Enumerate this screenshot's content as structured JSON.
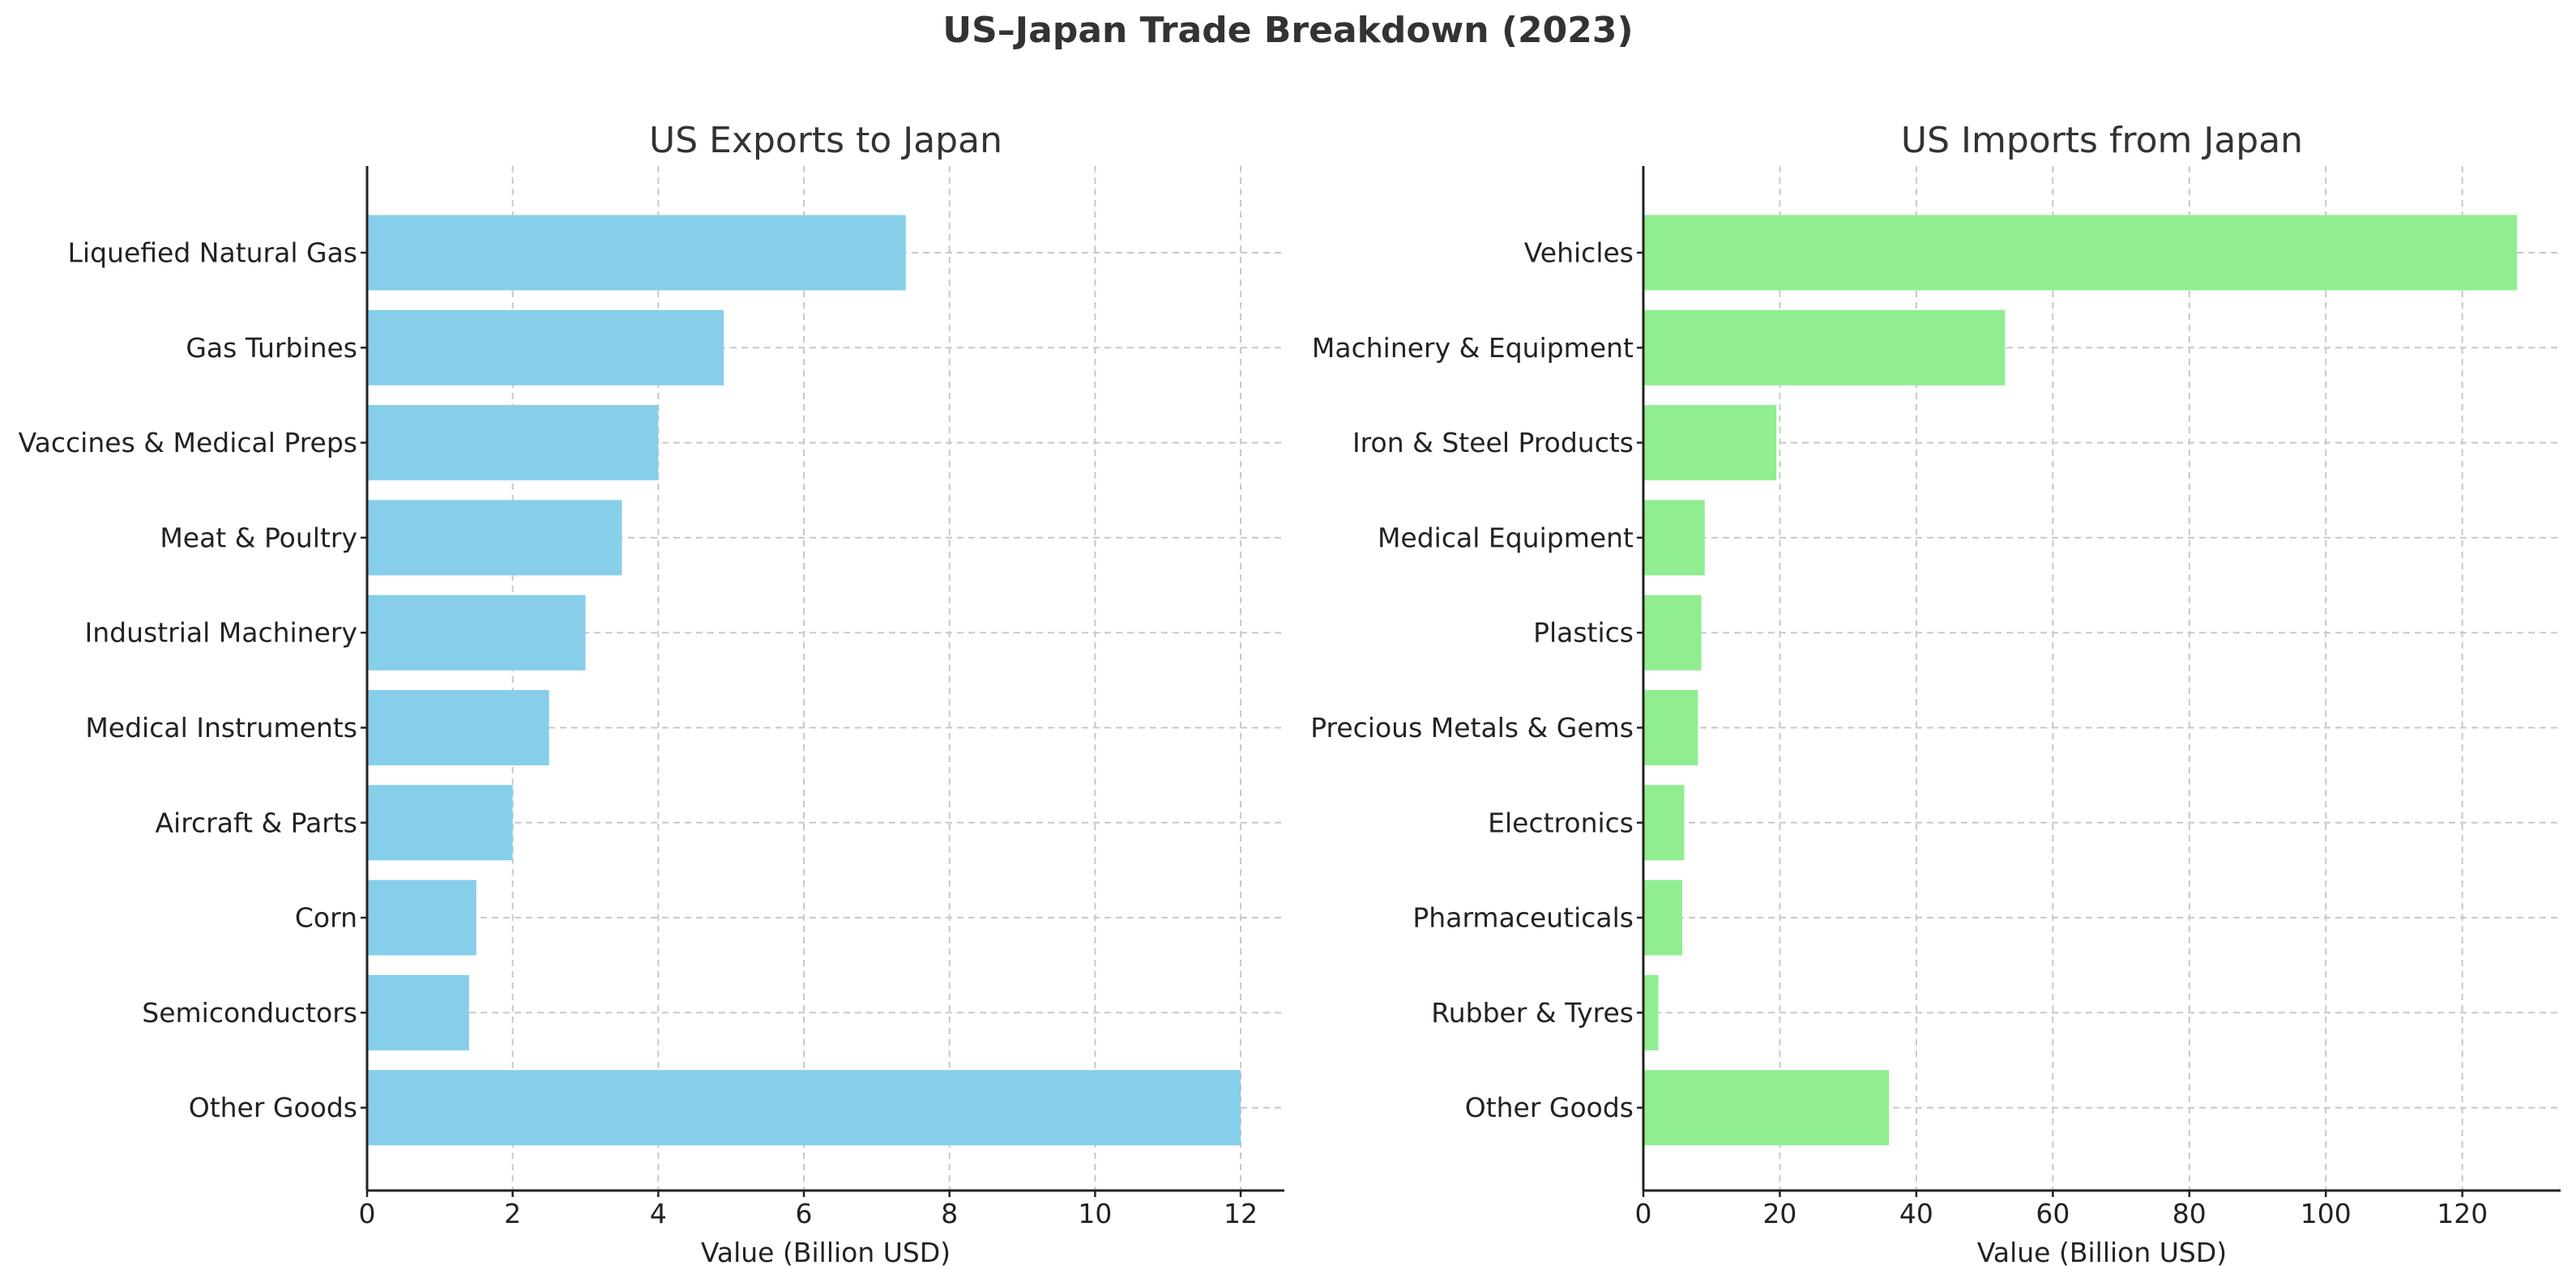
{
  "figure_title": "US–Japan Trade Breakdown (2023)",
  "chart_data": [
    {
      "type": "bar",
      "orientation": "horizontal",
      "title": "US Exports to Japan",
      "xlabel": "Value (Billion USD)",
      "ylabel": "",
      "categories": [
        "Liquefied Natural Gas",
        "Gas Turbines",
        "Vaccines & Medical Preps",
        "Meat & Poultry",
        "Industrial Machinery",
        "Medical Instruments",
        "Aircraft & Parts",
        "Corn",
        "Semiconductors",
        "Other Goods"
      ],
      "values": [
        7.4,
        4.9,
        4.0,
        3.5,
        3.0,
        2.5,
        2.0,
        1.5,
        1.4,
        12.0
      ],
      "xlim": [
        0,
        12.6
      ],
      "xticks": [
        0,
        2,
        4,
        6,
        8,
        10,
        12
      ],
      "color": "#87ceeb",
      "grid": true
    },
    {
      "type": "bar",
      "orientation": "horizontal",
      "title": "US Imports from Japan",
      "xlabel": "Value (Billion USD)",
      "ylabel": "",
      "categories": [
        "Vehicles",
        "Machinery & Equipment",
        "Iron & Steel Products",
        "Medical Equipment",
        "Plastics",
        "Precious Metals & Gems",
        "Electronics",
        "Pharmaceuticals",
        "Rubber & Tyres",
        "Other Goods"
      ],
      "values": [
        128,
        53,
        19.5,
        9,
        8.5,
        8,
        6,
        5.7,
        2.2,
        36
      ],
      "xlim": [
        0,
        134.4
      ],
      "xticks": [
        0,
        20,
        40,
        60,
        80,
        100,
        120
      ],
      "color": "#90ee90",
      "grid": true
    }
  ]
}
